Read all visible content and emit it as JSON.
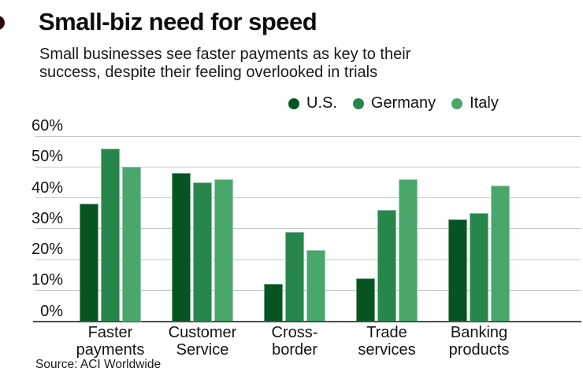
{
  "header": {
    "title": "Small-biz need for speed",
    "subtitle_line1": "Small businesses see faster payments as key to their",
    "subtitle_line2": "success, despite their feeling overlooked in trials"
  },
  "source": {
    "text": "Source: ACI Worldwide"
  },
  "decoration": {
    "corner_mark_color": "#2e0709"
  },
  "colors": {
    "us": "#075423",
    "germany": "#27864b",
    "italy": "#4aa76c",
    "gridline": "#c7c7c7",
    "axis": "#4d4d4d",
    "text": "#111111"
  },
  "chart_data": {
    "type": "bar",
    "title": "Small-biz need for speed",
    "subtitle": "Small businesses see faster payments as key to their success, despite their feeling overlooked in trials",
    "categories": [
      "Faster payments",
      "Customer Service",
      "Cross-border",
      "Trade services",
      "Banking products"
    ],
    "category_labels": [
      [
        "Faster",
        "payments"
      ],
      [
        "Customer",
        "Service"
      ],
      [
        "Cross-",
        "border"
      ],
      [
        "Trade",
        "services"
      ],
      [
        "Banking",
        "products"
      ]
    ],
    "series": [
      {
        "name": "U.S.",
        "color": "#075423",
        "values": [
          38,
          48,
          12,
          14,
          33
        ]
      },
      {
        "name": "Germany",
        "color": "#27864b",
        "values": [
          56,
          45,
          29,
          36,
          35
        ]
      },
      {
        "name": "Italy",
        "color": "#4aa76c",
        "values": [
          50,
          46,
          23,
          46,
          44
        ]
      }
    ],
    "ylabel": "",
    "xlabel": "",
    "ylim": [
      0,
      60
    ],
    "yticks": [
      "0%",
      "10%",
      "20%",
      "30%",
      "40%",
      "50%",
      "60%"
    ],
    "grid": true,
    "legend_position": "top-right",
    "unit": "percent"
  }
}
